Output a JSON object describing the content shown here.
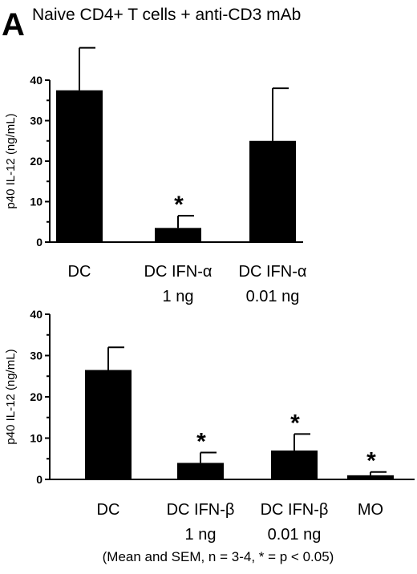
{
  "panel_label": "A",
  "heading": "Naive CD4+ T cells + anti-CD3 mAb",
  "footnote": "(Mean and SEM, n = 3-4, * = p < 0.05)",
  "colors": {
    "bar": "#000000",
    "axis": "#000000",
    "background": "#ffffff"
  },
  "chart_data": [
    {
      "type": "bar",
      "title": "",
      "xlabel": "",
      "ylabel": "p40 IL-12 (ng/mL)",
      "ylim": [
        0,
        40
      ],
      "yticks": [
        0,
        10,
        20,
        30,
        40
      ],
      "grid": false,
      "categories": [
        {
          "line1": "DC",
          "line2": ""
        },
        {
          "line1": "DC IFN-α",
          "line2": "1 ng"
        },
        {
          "line1": "DC IFN-α",
          "line2": "0.01 ng"
        }
      ],
      "values": [
        37.5,
        3.5,
        25
      ],
      "errors": [
        10.5,
        3,
        13
      ],
      "significant": [
        false,
        true,
        false
      ],
      "significance_marker": "*"
    },
    {
      "type": "bar",
      "title": "",
      "xlabel": "",
      "ylabel": "p40 IL-12 (ng/mL)",
      "ylim": [
        0,
        40
      ],
      "yticks": [
        0,
        10,
        20,
        30,
        40
      ],
      "grid": false,
      "categories": [
        {
          "line1": "DC",
          "line2": ""
        },
        {
          "line1": "DC IFN-β",
          "line2": "1 ng"
        },
        {
          "line1": "DC IFN-β",
          "line2": "0.01 ng"
        },
        {
          "line1": "MO",
          "line2": ""
        }
      ],
      "values": [
        26.5,
        4,
        7,
        1
      ],
      "errors": [
        5.5,
        2.5,
        4,
        0.8
      ],
      "significant": [
        false,
        true,
        true,
        true
      ],
      "significance_marker": "*"
    }
  ]
}
